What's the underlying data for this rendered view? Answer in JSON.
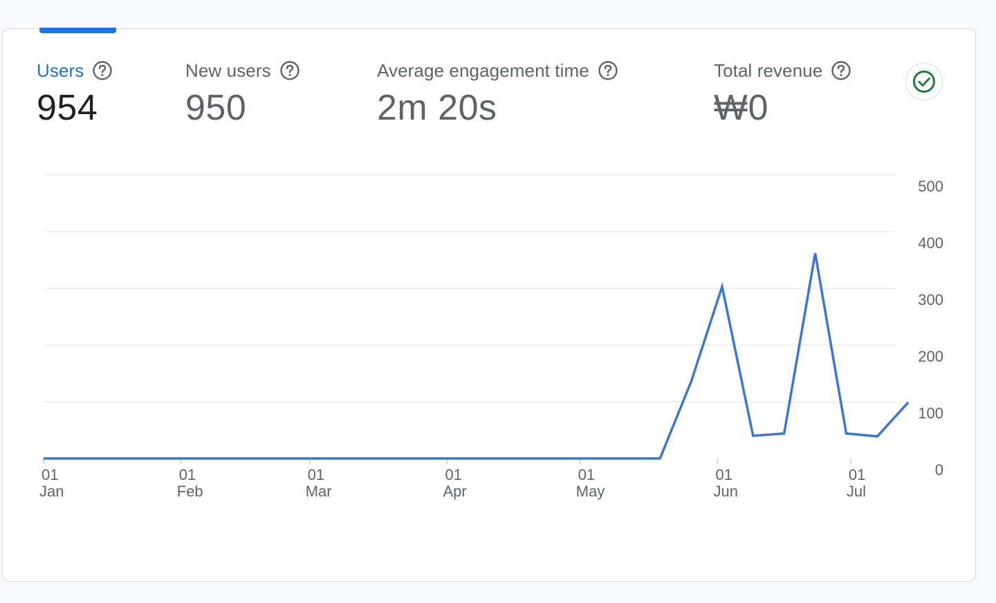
{
  "metrics": [
    {
      "label": "Users",
      "value": "954",
      "selected": true
    },
    {
      "label": "New users",
      "value": "950",
      "selected": false
    },
    {
      "label": "Average engagement time",
      "value": "2m 20s",
      "selected": false
    },
    {
      "label": "Total revenue",
      "value": "₩0",
      "selected": false
    }
  ],
  "icons": {
    "help": "help-circle-icon",
    "status": "check-circle-icon"
  },
  "colors": {
    "accent": "#1a73e8",
    "line": "#3a76d8",
    "check": "#188038",
    "grid": "#e8eaed",
    "text_muted": "#5f6368",
    "text_strong": "#202124"
  },
  "chart_data": {
    "type": "line",
    "title": "",
    "xlabel": "",
    "ylabel": "",
    "x_start": "2024-01-01",
    "x_end": "2024-07-11",
    "ylim": [
      0,
      500
    ],
    "y_ticks": [
      "0",
      "100",
      "200",
      "300",
      "400",
      "500"
    ],
    "x_ticks": [
      {
        "date": "2024-01-01",
        "day": "01",
        "month": "Jan"
      },
      {
        "date": "2024-02-01",
        "day": "01",
        "month": "Feb"
      },
      {
        "date": "2024-03-01",
        "day": "01",
        "month": "Mar"
      },
      {
        "date": "2024-04-01",
        "day": "01",
        "month": "Apr"
      },
      {
        "date": "2024-05-01",
        "day": "01",
        "month": "May"
      },
      {
        "date": "2024-06-01",
        "day": "01",
        "month": "Jun"
      },
      {
        "date": "2024-07-01",
        "day": "01",
        "month": "Jul"
      }
    ],
    "grid": true,
    "series": [
      {
        "points": [
          [
            "2024-01-01",
            0
          ],
          [
            "2024-05-19",
            0
          ],
          [
            "2024-05-26",
            135
          ],
          [
            "2024-06-02",
            303
          ],
          [
            "2024-06-09",
            40
          ],
          [
            "2024-06-16",
            44
          ],
          [
            "2024-06-23",
            362
          ],
          [
            "2024-06-30",
            44
          ],
          [
            "2024-07-07",
            39
          ],
          [
            "2024-07-14",
            99
          ]
        ]
      }
    ]
  }
}
